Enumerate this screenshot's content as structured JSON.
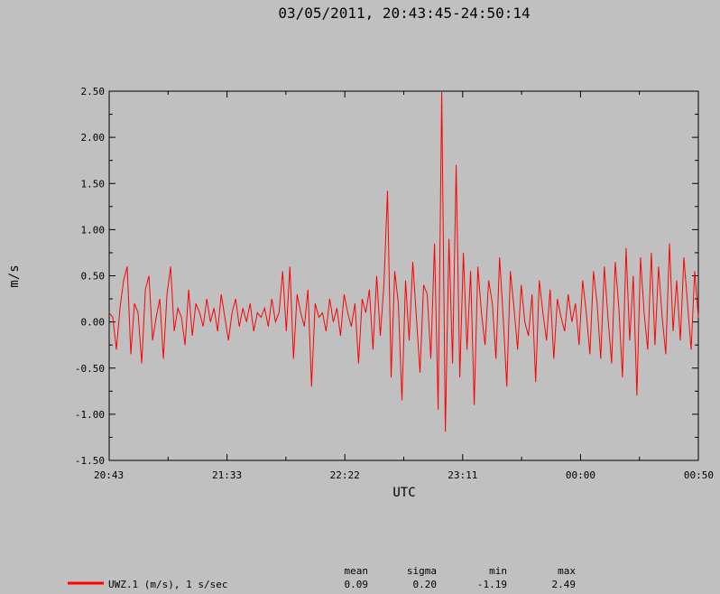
{
  "chart_data": {
    "type": "line",
    "title": "03/05/2011, 20:43:45-24:50:14",
    "xlabel": "UTC",
    "ylabel": "m/s",
    "ylim": [
      -1.5,
      2.5
    ],
    "xlim": [
      "20:43",
      "00:50"
    ],
    "x_ticks": [
      "20:43",
      "21:33",
      "22:22",
      "23:11",
      "00:00",
      "00:50"
    ],
    "y_ticks": [
      "2.50",
      "2.00",
      "1.50",
      "1.00",
      "0.50",
      "0.00",
      "-0.50",
      "-1.00",
      "-1.50"
    ],
    "grid": false,
    "legend_position": "bottom-left",
    "series": [
      {
        "name": "UWZ.1 (m/s), 1 s/sec",
        "color": "#ff0000",
        "x_start": "20:43:45",
        "x_end": "24:50:14",
        "values": [
          0.1,
          0.05,
          -0.3,
          0.15,
          0.45,
          0.6,
          -0.35,
          0.2,
          0.1,
          -0.45,
          0.35,
          0.5,
          -0.2,
          0.05,
          0.25,
          -0.4,
          0.3,
          0.6,
          -0.1,
          0.15,
          0.05,
          -0.25,
          0.35,
          -0.15,
          0.2,
          0.1,
          -0.05,
          0.25,
          0.0,
          0.15,
          -0.1,
          0.3,
          0.05,
          -0.2,
          0.1,
          0.25,
          -0.05,
          0.15,
          0.0,
          0.2,
          -0.1,
          0.1,
          0.05,
          0.15,
          -0.05,
          0.25,
          0.0,
          0.1,
          0.55,
          -0.1,
          0.6,
          -0.4,
          0.3,
          0.1,
          -0.05,
          0.35,
          -0.7,
          0.2,
          0.05,
          0.1,
          -0.1,
          0.25,
          0.0,
          0.15,
          -0.15,
          0.3,
          0.1,
          -0.05,
          0.2,
          -0.45,
          0.25,
          0.1,
          0.35,
          -0.3,
          0.5,
          -0.15,
          0.4,
          1.42,
          -0.6,
          0.55,
          0.2,
          -0.85,
          0.45,
          -0.2,
          0.65,
          0.05,
          -0.55,
          0.4,
          0.3,
          -0.4,
          0.85,
          -0.95,
          2.49,
          -1.19,
          0.9,
          -0.45,
          1.7,
          -0.6,
          0.75,
          -0.3,
          0.55,
          -0.9,
          0.6,
          0.1,
          -0.25,
          0.45,
          0.2,
          -0.4,
          0.7,
          0.05,
          -0.7,
          0.55,
          0.15,
          -0.3,
          0.4,
          0.0,
          -0.15,
          0.3,
          -0.65,
          0.45,
          0.1,
          -0.2,
          0.35,
          -0.4,
          0.25,
          0.05,
          -0.1,
          0.3,
          0.0,
          0.2,
          -0.25,
          0.45,
          0.1,
          -0.35,
          0.55,
          0.2,
          -0.4,
          0.6,
          0.05,
          -0.45,
          0.65,
          0.15,
          -0.6,
          0.8,
          -0.2,
          0.5,
          -0.8,
          0.7,
          0.1,
          -0.3,
          0.75,
          -0.25,
          0.6,
          0.05,
          -0.35,
          0.85,
          -0.1,
          0.45,
          -0.2,
          0.7,
          0.2,
          -0.3,
          0.55,
          0.05
        ]
      }
    ],
    "stats_headers": [
      "mean",
      "sigma",
      "min",
      "max"
    ],
    "stats_values": [
      "0.09",
      "0.20",
      "-1.19",
      "2.49"
    ]
  }
}
